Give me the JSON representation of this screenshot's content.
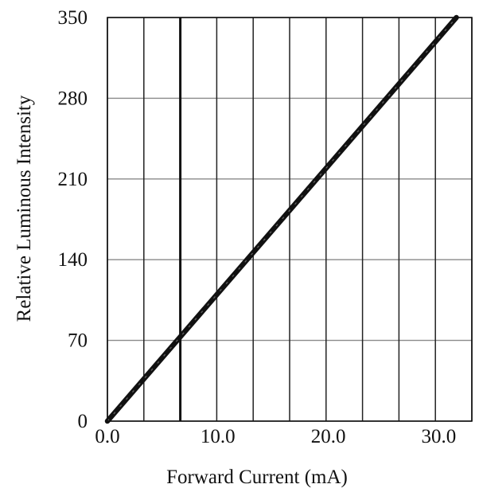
{
  "chart_data": {
    "type": "line",
    "title": "",
    "xlabel": "Forward Current (mA)",
    "ylabel": "Relative Luminous Intensity",
    "xlim": [
      0,
      33
    ],
    "ylim": [
      0,
      350
    ],
    "x_ticks": [
      {
        "value": 0,
        "label": "0.0"
      },
      {
        "value": 10,
        "label": "10.0"
      },
      {
        "value": 20,
        "label": "20.0"
      },
      {
        "value": 30,
        "label": "30.0"
      }
    ],
    "y_ticks": [
      {
        "value": 0,
        "label": "0"
      },
      {
        "value": 70,
        "label": "70"
      },
      {
        "value": 140,
        "label": "140"
      },
      {
        "value": 210,
        "label": "210"
      },
      {
        "value": 280,
        "label": "280"
      },
      {
        "value": 350,
        "label": "350"
      }
    ],
    "x_gridlines": [
      0,
      3.3,
      6.6,
      9.9,
      13.2,
      16.5,
      19.8,
      23.1,
      26.4,
      29.7,
      33
    ],
    "emphasized_x_gridline": 6.6,
    "grid": true,
    "line_color": "#111111",
    "series": [
      {
        "name": "",
        "x": [
          0,
          31.6
        ],
        "y": [
          0,
          350
        ]
      }
    ]
  }
}
